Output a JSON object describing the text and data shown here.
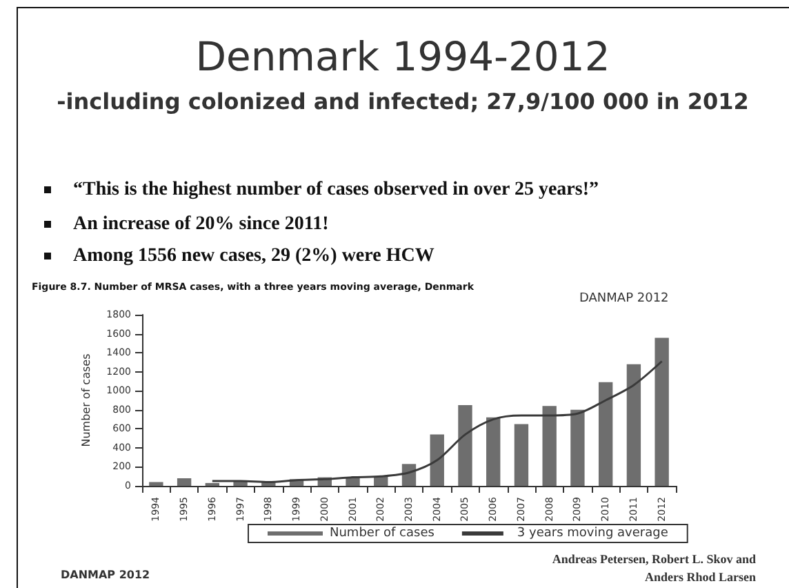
{
  "chart_data": {
    "type": "bar",
    "title": "Denmark 1994-2012",
    "subtitle": "-including colonized and infected; 27,9/100 000 in 2012",
    "ylabel": "Number of cases",
    "categories": [
      "1994",
      "1995",
      "1996",
      "1997",
      "1998",
      "1999",
      "2000",
      "2001",
      "2002",
      "2003",
      "2004",
      "2005",
      "2006",
      "2007",
      "2008",
      "2009",
      "2010",
      "2011",
      "2012"
    ],
    "series": [
      {
        "name": "Number of cases",
        "color": "#6e6e6e",
        "values": [
          40,
          80,
          30,
          50,
          40,
          70,
          90,
          90,
          100,
          230,
          540,
          850,
          720,
          650,
          840,
          800,
          1090,
          1280,
          1556
        ]
      },
      {
        "name": "3 years moving average",
        "type": "line",
        "color": "#3a3a3a",
        "values": [
          null,
          null,
          50,
          50,
          40,
          60,
          70,
          90,
          100,
          140,
          270,
          540,
          700,
          740,
          740,
          760,
          900,
          1060,
          1310
        ]
      }
    ],
    "ylim": [
      0,
      1800
    ],
    "yticks": [
      0,
      200,
      400,
      600,
      800,
      1000,
      1200,
      1400,
      1600,
      1800
    ],
    "grid": false,
    "legend": "bottom",
    "marker": "none",
    "line_style": "solid",
    "annotations": [
      "“This is the highest number of cases observed in over 25 years!”",
      "An increase of 20% since 2011!",
      "Among 1556 new cases, 29 (2%) were HCW",
      "Figure 8.7. Number of MRSA cases, with a three years moving average, Denmark",
      "DANMAP 2012",
      "Andreas Petersen, Robert L. Skov and Anders Rhod Larsen",
      "DANMAP 2012"
    ]
  }
}
